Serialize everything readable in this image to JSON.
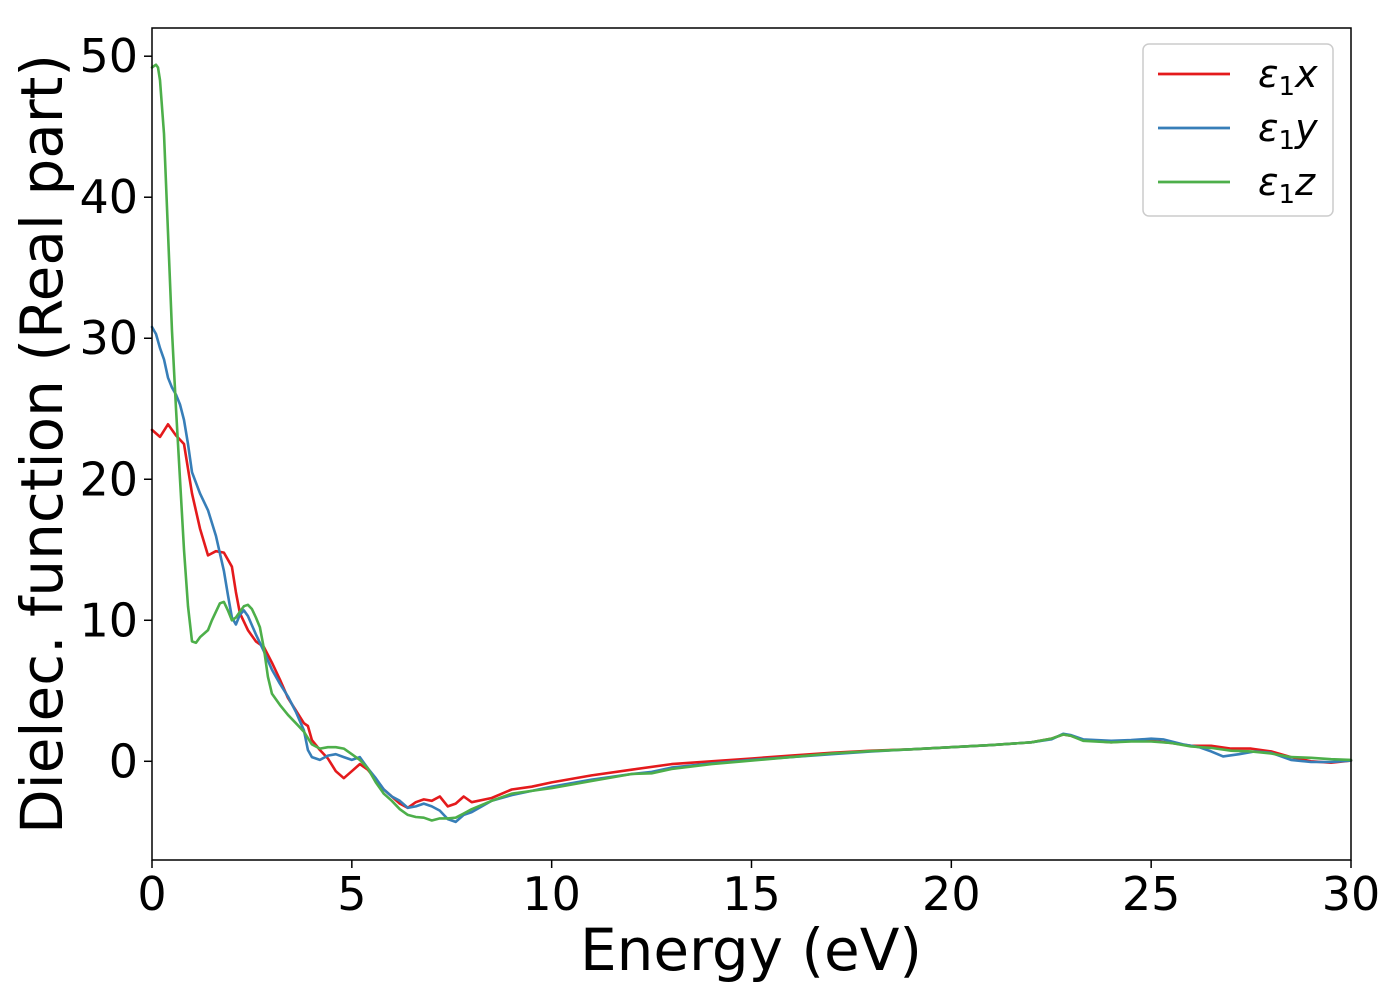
{
  "chart_data": {
    "type": "line",
    "title": "",
    "xlabel": "Energy (eV)",
    "ylabel": "Dielec. function (Real part)",
    "xlim": [
      0,
      30
    ],
    "ylim": [
      -7,
      52
    ],
    "xticks": [
      0,
      5,
      10,
      15,
      20,
      25,
      30
    ],
    "yticks": [
      0,
      10,
      20,
      30,
      40,
      50
    ],
    "grid": false,
    "legend_position": "top-right",
    "series": [
      {
        "name": "ε1x",
        "legend_main": "ε",
        "legend_sub": "1",
        "legend_var": "x",
        "color": "#e41a1c",
        "points": [
          [
            0,
            23.5
          ],
          [
            0.2,
            23.0
          ],
          [
            0.4,
            23.9
          ],
          [
            0.6,
            23.1
          ],
          [
            0.8,
            22.5
          ],
          [
            1.0,
            19.0
          ],
          [
            1.2,
            16.5
          ],
          [
            1.4,
            14.6
          ],
          [
            1.6,
            14.9
          ],
          [
            1.8,
            14.8
          ],
          [
            2.0,
            13.8
          ],
          [
            2.1,
            12.0
          ],
          [
            2.2,
            10.5
          ],
          [
            2.4,
            9.3
          ],
          [
            2.6,
            8.5
          ],
          [
            2.8,
            8.1
          ],
          [
            3.0,
            7.0
          ],
          [
            3.2,
            5.8
          ],
          [
            3.4,
            4.5
          ],
          [
            3.6,
            3.6
          ],
          [
            3.8,
            2.7
          ],
          [
            3.9,
            2.5
          ],
          [
            4.0,
            1.5
          ],
          [
            4.2,
            0.8
          ],
          [
            4.4,
            0.2
          ],
          [
            4.6,
            -0.7
          ],
          [
            4.8,
            -1.2
          ],
          [
            5.0,
            -0.7
          ],
          [
            5.2,
            -0.2
          ],
          [
            5.4,
            -0.6
          ],
          [
            5.6,
            -1.3
          ],
          [
            5.8,
            -2.0
          ],
          [
            6.0,
            -2.5
          ],
          [
            6.2,
            -3.0
          ],
          [
            6.4,
            -3.3
          ],
          [
            6.6,
            -2.9
          ],
          [
            6.8,
            -2.7
          ],
          [
            7.0,
            -2.8
          ],
          [
            7.2,
            -2.5
          ],
          [
            7.4,
            -3.2
          ],
          [
            7.6,
            -3.0
          ],
          [
            7.8,
            -2.5
          ],
          [
            8.0,
            -2.9
          ],
          [
            8.5,
            -2.6
          ],
          [
            9.0,
            -2.0
          ],
          [
            9.5,
            -1.8
          ],
          [
            10.0,
            -1.5
          ],
          [
            11.0,
            -1.0
          ],
          [
            12.0,
            -0.6
          ],
          [
            13.0,
            -0.2
          ],
          [
            14.0,
            0.0
          ],
          [
            15.0,
            0.2
          ],
          [
            16.0,
            0.4
          ],
          [
            17.0,
            0.6
          ],
          [
            18.0,
            0.75
          ],
          [
            19.0,
            0.85
          ],
          [
            20.0,
            1.0
          ],
          [
            21.0,
            1.15
          ],
          [
            22.0,
            1.35
          ],
          [
            22.5,
            1.6
          ],
          [
            22.8,
            1.9
          ],
          [
            23.0,
            1.8
          ],
          [
            23.3,
            1.5
          ],
          [
            24.0,
            1.35
          ],
          [
            24.5,
            1.45
          ],
          [
            25.0,
            1.45
          ],
          [
            25.5,
            1.3
          ],
          [
            26.0,
            1.1
          ],
          [
            26.5,
            1.1
          ],
          [
            27.0,
            0.9
          ],
          [
            27.5,
            0.9
          ],
          [
            28.0,
            0.7
          ],
          [
            28.5,
            0.3
          ],
          [
            29.0,
            0.0
          ],
          [
            29.5,
            -0.1
          ],
          [
            30.0,
            0.05
          ]
        ]
      },
      {
        "name": "ε1y",
        "legend_main": "ε",
        "legend_sub": "1",
        "legend_var": "y",
        "color": "#377eb8",
        "points": [
          [
            0,
            30.8
          ],
          [
            0.1,
            30.3
          ],
          [
            0.2,
            29.3
          ],
          [
            0.3,
            28.5
          ],
          [
            0.4,
            27.2
          ],
          [
            0.5,
            26.5
          ],
          [
            0.6,
            26.0
          ],
          [
            0.7,
            25.3
          ],
          [
            0.8,
            24.2
          ],
          [
            0.9,
            22.5
          ],
          [
            1.0,
            20.5
          ],
          [
            1.2,
            19.0
          ],
          [
            1.4,
            17.8
          ],
          [
            1.6,
            16.0
          ],
          [
            1.8,
            13.5
          ],
          [
            1.9,
            11.8
          ],
          [
            2.0,
            10.2
          ],
          [
            2.1,
            9.7
          ],
          [
            2.2,
            10.4
          ],
          [
            2.3,
            10.7
          ],
          [
            2.4,
            10.3
          ],
          [
            2.6,
            9.0
          ],
          [
            2.8,
            7.8
          ],
          [
            3.0,
            6.5
          ],
          [
            3.2,
            5.5
          ],
          [
            3.4,
            4.6
          ],
          [
            3.6,
            3.5
          ],
          [
            3.8,
            2.2
          ],
          [
            3.9,
            0.8
          ],
          [
            4.0,
            0.3
          ],
          [
            4.2,
            0.1
          ],
          [
            4.4,
            0.4
          ],
          [
            4.6,
            0.5
          ],
          [
            4.8,
            0.3
          ],
          [
            5.0,
            0.1
          ],
          [
            5.2,
            0.3
          ],
          [
            5.4,
            -0.5
          ],
          [
            5.6,
            -1.2
          ],
          [
            5.8,
            -2.0
          ],
          [
            6.0,
            -2.5
          ],
          [
            6.2,
            -2.8
          ],
          [
            6.4,
            -3.3
          ],
          [
            6.6,
            -3.2
          ],
          [
            6.8,
            -3.0
          ],
          [
            7.0,
            -3.2
          ],
          [
            7.2,
            -3.5
          ],
          [
            7.4,
            -4.1
          ],
          [
            7.6,
            -4.3
          ],
          [
            7.8,
            -3.8
          ],
          [
            8.0,
            -3.6
          ],
          [
            8.5,
            -2.8
          ],
          [
            9.0,
            -2.4
          ],
          [
            9.5,
            -2.1
          ],
          [
            10.0,
            -1.8
          ],
          [
            11.0,
            -1.3
          ],
          [
            12.0,
            -0.9
          ],
          [
            12.5,
            -0.75
          ],
          [
            13.0,
            -0.45
          ],
          [
            14.0,
            -0.15
          ],
          [
            15.0,
            0.1
          ],
          [
            16.0,
            0.3
          ],
          [
            17.0,
            0.5
          ],
          [
            18.0,
            0.7
          ],
          [
            19.0,
            0.85
          ],
          [
            20.0,
            1.0
          ],
          [
            21.0,
            1.15
          ],
          [
            22.0,
            1.35
          ],
          [
            22.5,
            1.55
          ],
          [
            22.8,
            1.95
          ],
          [
            23.0,
            1.85
          ],
          [
            23.3,
            1.55
          ],
          [
            24.0,
            1.45
          ],
          [
            24.5,
            1.5
          ],
          [
            25.0,
            1.6
          ],
          [
            25.3,
            1.55
          ],
          [
            25.8,
            1.2
          ],
          [
            26.2,
            1.0
          ],
          [
            26.5,
            0.7
          ],
          [
            26.8,
            0.35
          ],
          [
            27.2,
            0.5
          ],
          [
            27.6,
            0.7
          ],
          [
            28.0,
            0.6
          ],
          [
            28.5,
            0.1
          ],
          [
            29.0,
            -0.05
          ],
          [
            29.5,
            -0.05
          ],
          [
            30.0,
            0.05
          ]
        ]
      },
      {
        "name": "ε1z",
        "legend_main": "ε",
        "legend_sub": "1",
        "legend_var": "z",
        "color": "#4daf4a",
        "points": [
          [
            0,
            49.2
          ],
          [
            0.05,
            49.3
          ],
          [
            0.1,
            49.4
          ],
          [
            0.15,
            49.2
          ],
          [
            0.2,
            48.3
          ],
          [
            0.3,
            44.5
          ],
          [
            0.4,
            37.5
          ],
          [
            0.5,
            30.5
          ],
          [
            0.6,
            25.0
          ],
          [
            0.7,
            20.0
          ],
          [
            0.8,
            15.0
          ],
          [
            0.9,
            11.0
          ],
          [
            1.0,
            8.5
          ],
          [
            1.1,
            8.4
          ],
          [
            1.2,
            8.8
          ],
          [
            1.4,
            9.3
          ],
          [
            1.5,
            10.0
          ],
          [
            1.6,
            10.6
          ],
          [
            1.7,
            11.2
          ],
          [
            1.8,
            11.3
          ],
          [
            1.9,
            10.7
          ],
          [
            2.0,
            10.0
          ],
          [
            2.1,
            10.2
          ],
          [
            2.2,
            10.6
          ],
          [
            2.3,
            11.0
          ],
          [
            2.4,
            11.1
          ],
          [
            2.5,
            10.8
          ],
          [
            2.6,
            10.2
          ],
          [
            2.7,
            9.5
          ],
          [
            2.8,
            8.0
          ],
          [
            2.9,
            6.0
          ],
          [
            3.0,
            4.8
          ],
          [
            3.2,
            4.0
          ],
          [
            3.4,
            3.3
          ],
          [
            3.6,
            2.7
          ],
          [
            3.8,
            2.1
          ],
          [
            4.0,
            1.2
          ],
          [
            4.2,
            0.9
          ],
          [
            4.4,
            1.0
          ],
          [
            4.6,
            1.0
          ],
          [
            4.8,
            0.9
          ],
          [
            5.0,
            0.5
          ],
          [
            5.2,
            0.1
          ],
          [
            5.4,
            -0.5
          ],
          [
            5.6,
            -1.5
          ],
          [
            5.8,
            -2.3
          ],
          [
            6.0,
            -2.8
          ],
          [
            6.2,
            -3.4
          ],
          [
            6.4,
            -3.8
          ],
          [
            6.6,
            -3.95
          ],
          [
            6.8,
            -4.0
          ],
          [
            7.0,
            -4.2
          ],
          [
            7.2,
            -4.05
          ],
          [
            7.4,
            -4.05
          ],
          [
            7.6,
            -4.0
          ],
          [
            7.8,
            -3.7
          ],
          [
            8.0,
            -3.4
          ],
          [
            8.5,
            -2.8
          ],
          [
            9.0,
            -2.3
          ],
          [
            9.5,
            -2.1
          ],
          [
            10.0,
            -1.9
          ],
          [
            11.0,
            -1.4
          ],
          [
            12.0,
            -0.9
          ],
          [
            12.5,
            -0.85
          ],
          [
            13.0,
            -0.55
          ],
          [
            14.0,
            -0.2
          ],
          [
            15.0,
            0.05
          ],
          [
            16.0,
            0.3
          ],
          [
            17.0,
            0.55
          ],
          [
            18.0,
            0.72
          ],
          [
            19.0,
            0.85
          ],
          [
            20.0,
            1.0
          ],
          [
            21.0,
            1.15
          ],
          [
            22.0,
            1.35
          ],
          [
            22.5,
            1.6
          ],
          [
            22.8,
            1.9
          ],
          [
            23.0,
            1.8
          ],
          [
            23.3,
            1.45
          ],
          [
            24.0,
            1.35
          ],
          [
            24.5,
            1.4
          ],
          [
            25.0,
            1.4
          ],
          [
            25.5,
            1.3
          ],
          [
            26.0,
            1.05
          ],
          [
            26.5,
            0.95
          ],
          [
            27.0,
            0.75
          ],
          [
            27.5,
            0.7
          ],
          [
            28.0,
            0.55
          ],
          [
            28.5,
            0.3
          ],
          [
            29.0,
            0.25
          ],
          [
            29.5,
            0.15
          ],
          [
            30.0,
            0.1
          ]
        ]
      }
    ]
  }
}
